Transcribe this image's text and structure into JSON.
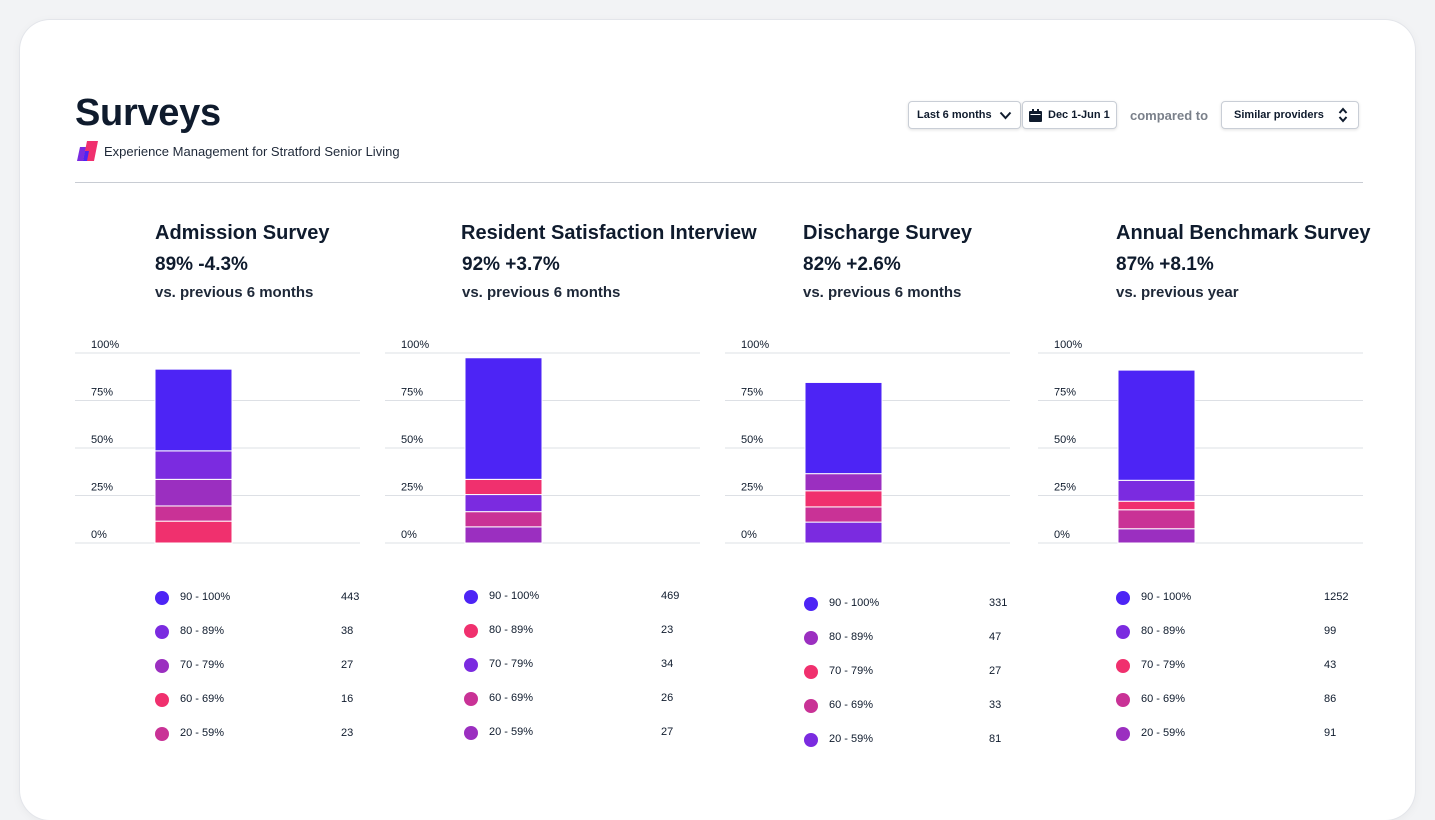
{
  "header": {
    "title": "Surveys",
    "subtitle": "Experience Management for Stratford Senior Living"
  },
  "controls": {
    "period": "Last 6 months",
    "dates": "Dec 1-Jun 1",
    "compared_label": "compared to",
    "comparison": "Similar providers"
  },
  "colors": {
    "blue": "#4d24f5",
    "violet": "#7b2be0",
    "purple": "#9b2fc0",
    "pink": "#f0306e",
    "magenta": "#c93296"
  },
  "axis_labels": [
    "100%",
    "75%",
    "50%",
    "25%",
    "0%"
  ],
  "surveys": [
    {
      "title": "Admission Survey",
      "stat": "89% -4.3%",
      "comparison": "vs. previous 6 months",
      "legend": [
        {
          "range": "90 - 100%",
          "count": "443",
          "color": "#4d24f5"
        },
        {
          "range": "80 - 89%",
          "count": "38",
          "color": "#7b2be0"
        },
        {
          "range": "70 - 79%",
          "count": "27",
          "color": "#9b2fc0"
        },
        {
          "range": "60 - 69%",
          "count": "16",
          "color": "#f0306e"
        },
        {
          "range": "20 - 59%",
          "count": "23",
          "color": "#c93296"
        }
      ]
    },
    {
      "title": "Resident Satisfaction Interview",
      "stat": "92% +3.7%",
      "comparison": "vs. previous 6 months",
      "legend": [
        {
          "range": "90 - 100%",
          "count": "469",
          "color": "#4d24f5"
        },
        {
          "range": "80 - 89%",
          "count": "23",
          "color": "#f0306e"
        },
        {
          "range": "70 - 79%",
          "count": "34",
          "color": "#7b2be0"
        },
        {
          "range": "60 - 69%",
          "count": "26",
          "color": "#c93296"
        },
        {
          "range": "20 - 59%",
          "count": "27",
          "color": "#9b2fc0"
        }
      ]
    },
    {
      "title": "Discharge Survey",
      "stat": "82% +2.6%",
      "comparison": "vs. previous 6 months",
      "legend": [
        {
          "range": "90 - 100%",
          "count": "331",
          "color": "#4d24f5"
        },
        {
          "range": "80 - 89%",
          "count": "47",
          "color": "#9b2fc0"
        },
        {
          "range": "70 - 79%",
          "count": "27",
          "color": "#f0306e"
        },
        {
          "range": "60 - 69%",
          "count": "33",
          "color": "#c93296"
        },
        {
          "range": "20 - 59%",
          "count": "81",
          "color": "#7b2be0"
        }
      ]
    },
    {
      "title": "Annual Benchmark Survey",
      "stat": "87% +8.1%",
      "comparison": "vs. previous year",
      "legend": [
        {
          "range": "90 - 100%",
          "count": "1252",
          "color": "#4d24f5"
        },
        {
          "range": "80 - 89%",
          "count": "99",
          "color": "#7b2be0"
        },
        {
          "range": "70 - 79%",
          "count": "43",
          "color": "#f0306e"
        },
        {
          "range": "60 - 69%",
          "count": "86",
          "color": "#c93296"
        },
        {
          "range": "20 - 59%",
          "count": "91",
          "color": "#9b2fc0"
        }
      ]
    }
  ],
  "chart_data": [
    {
      "type": "bar",
      "stacked": true,
      "ylim": [
        0,
        100
      ],
      "yticks": [
        "100%",
        "75%",
        "50%",
        "25%",
        "0%"
      ],
      "segments": [
        {
          "label": "90 - 100%",
          "value": 43.0,
          "color": "#4d24f5"
        },
        {
          "label": "80 - 89%",
          "value": 15.0,
          "color": "#7b2be0"
        },
        {
          "label": "70 - 79%",
          "value": 14.0,
          "color": "#9b2fc0"
        },
        {
          "label": "60 - 69%",
          "value": 8.0,
          "color": "#c93296"
        },
        {
          "label": "20 - 59%",
          "value": 11.5,
          "color": "#f0306e"
        }
      ]
    },
    {
      "type": "bar",
      "stacked": true,
      "ylim": [
        0,
        100
      ],
      "yticks": [
        "100%",
        "75%",
        "50%",
        "25%",
        "0%"
      ],
      "segments": [
        {
          "label": "90 - 100%",
          "value": 64.0,
          "color": "#4d24f5"
        },
        {
          "label": "80 - 89%",
          "value": 8.0,
          "color": "#f0306e"
        },
        {
          "label": "70 - 79%",
          "value": 9.0,
          "color": "#7b2be0"
        },
        {
          "label": "60 - 69%",
          "value": 8.0,
          "color": "#c93296"
        },
        {
          "label": "20 - 59%",
          "value": 8.5,
          "color": "#9b2fc0"
        }
      ]
    },
    {
      "type": "bar",
      "stacked": true,
      "ylim": [
        0,
        100
      ],
      "yticks": [
        "100%",
        "75%",
        "50%",
        "25%",
        "0%"
      ],
      "segments": [
        {
          "label": "90 - 100%",
          "value": 48.0,
          "color": "#4d24f5"
        },
        {
          "label": "80 - 89%",
          "value": 9.0,
          "color": "#9b2fc0"
        },
        {
          "label": "70 - 79%",
          "value": 8.5,
          "color": "#f0306e"
        },
        {
          "label": "60 - 69%",
          "value": 8.0,
          "color": "#c93296"
        },
        {
          "label": "20 - 59%",
          "value": 11.0,
          "color": "#7b2be0"
        }
      ]
    },
    {
      "type": "bar",
      "stacked": true,
      "ylim": [
        0,
        100
      ],
      "yticks": [
        "100%",
        "75%",
        "50%",
        "25%",
        "0%"
      ],
      "segments": [
        {
          "label": "90 - 100%",
          "value": 58.0,
          "color": "#4d24f5"
        },
        {
          "label": "80 - 89%",
          "value": 11.0,
          "color": "#7b2be0"
        },
        {
          "label": "70 - 79%",
          "value": 4.5,
          "color": "#f0306e"
        },
        {
          "label": "60 - 69%",
          "value": 10.0,
          "color": "#c93296"
        },
        {
          "label": "20 - 59%",
          "value": 7.5,
          "color": "#9b2fc0"
        }
      ]
    }
  ]
}
